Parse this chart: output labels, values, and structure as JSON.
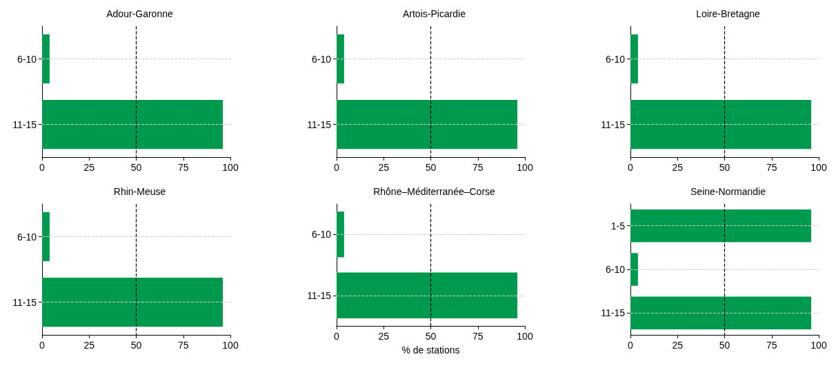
{
  "chart_data": [
    {
      "type": "bar",
      "orientation": "horizontal",
      "title": "Adour-Garonne",
      "categories": [
        "6-10",
        "11-15"
      ],
      "values": [
        4,
        96
      ],
      "color": "#009a4e",
      "xlim": [
        0,
        100
      ],
      "xticks": [
        0,
        25,
        50,
        75,
        100
      ],
      "grid": "y",
      "ref_lines": [
        {
          "axis": "x",
          "value": 50,
          "color": "#000000",
          "line_style": "dashed"
        }
      ]
    },
    {
      "type": "bar",
      "orientation": "horizontal",
      "title": "Artois-Picardie",
      "categories": [
        "6-10",
        "11-15"
      ],
      "values": [
        4,
        96
      ],
      "color": "#009a4e",
      "xlim": [
        0,
        100
      ],
      "xticks": [
        0,
        25,
        50,
        75,
        100
      ],
      "grid": "y",
      "ref_lines": [
        {
          "axis": "x",
          "value": 50,
          "color": "#000000",
          "line_style": "dashed"
        }
      ]
    },
    {
      "type": "bar",
      "orientation": "horizontal",
      "title": "Loire-Bretagne",
      "categories": [
        "6-10",
        "11-15"
      ],
      "values": [
        4,
        96
      ],
      "color": "#009a4e",
      "xlim": [
        0,
        100
      ],
      "xticks": [
        0,
        25,
        50,
        75,
        100
      ],
      "grid": "y",
      "ref_lines": [
        {
          "axis": "x",
          "value": 50,
          "color": "#000000",
          "line_style": "dashed"
        }
      ]
    },
    {
      "type": "bar",
      "orientation": "horizontal",
      "title": "Rhin-Meuse",
      "categories": [
        "6-10",
        "11-15"
      ],
      "values": [
        4,
        96
      ],
      "color": "#009a4e",
      "xlim": [
        0,
        100
      ],
      "xticks": [
        0,
        25,
        50,
        75,
        100
      ],
      "grid": "y",
      "ref_lines": [
        {
          "axis": "x",
          "value": 50,
          "color": "#000000",
          "line_style": "dashed"
        }
      ]
    },
    {
      "type": "bar",
      "orientation": "horizontal",
      "title": "Rhône–Méditerranée–Corse",
      "xlabel": "% de stations",
      "categories": [
        "6-10",
        "11-15"
      ],
      "values": [
        4,
        96
      ],
      "color": "#009a4e",
      "xlim": [
        0,
        100
      ],
      "xticks": [
        0,
        25,
        50,
        75,
        100
      ],
      "grid": "y",
      "ref_lines": [
        {
          "axis": "x",
          "value": 50,
          "color": "#000000",
          "line_style": "dashed"
        }
      ]
    },
    {
      "type": "bar",
      "orientation": "horizontal",
      "title": "Seine-Normandie",
      "categories": [
        "1-5",
        "6-10",
        "11-15"
      ],
      "values": [
        96,
        4,
        96
      ],
      "color": "#009a4e",
      "xlim": [
        0,
        100
      ],
      "xticks": [
        0,
        25,
        50,
        75,
        100
      ],
      "grid": "y",
      "ref_lines": [
        {
          "axis": "x",
          "value": 50,
          "color": "#000000",
          "line_style": "dashed"
        }
      ]
    }
  ]
}
